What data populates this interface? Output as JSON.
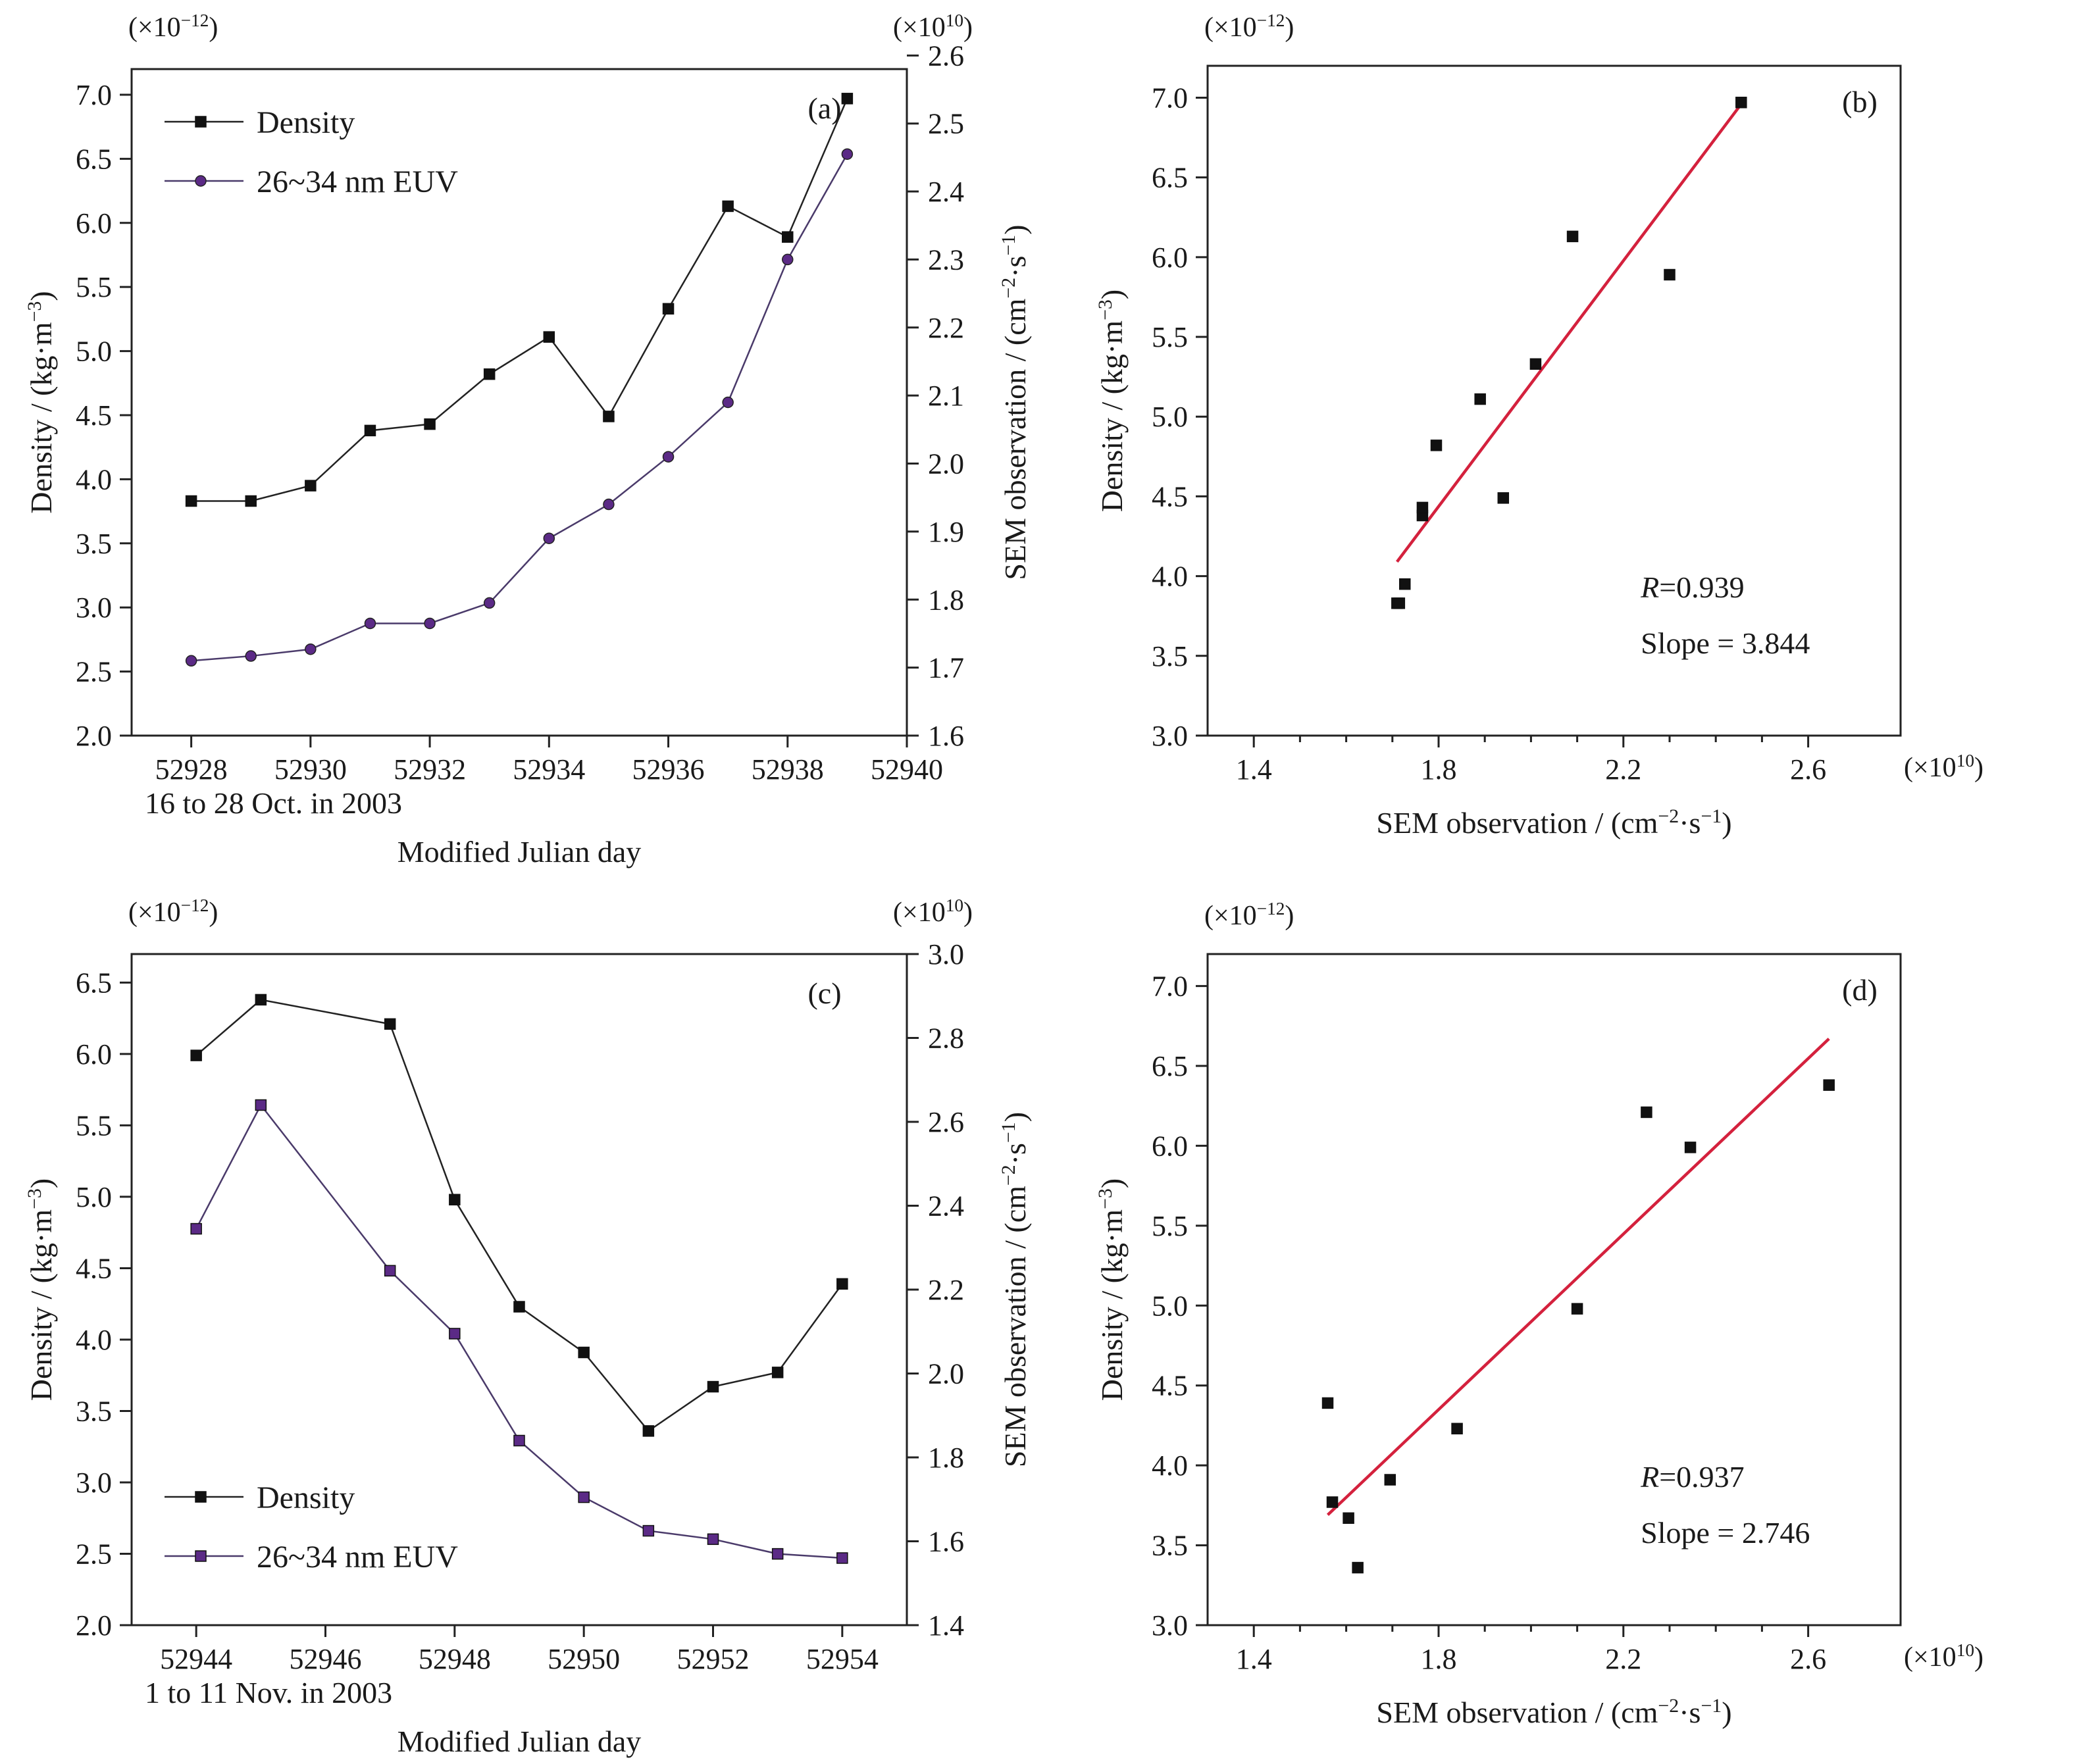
{
  "chart_data": [
    {
      "panel": "(a)",
      "type": "line",
      "dual_axis": true,
      "x": [
        52928,
        52929,
        52930,
        52931,
        52932,
        52933,
        52934,
        52935,
        52936,
        52937,
        52938,
        52939
      ],
      "xlabel": "Modified Julian day",
      "x_note": "16 to 28 Oct. in 2003",
      "xlim": [
        52927,
        52940
      ],
      "xticks": [
        52928,
        52930,
        52932,
        52934,
        52936,
        52938,
        52940
      ],
      "ylabel": "Density / (kg·m⁻³)",
      "ylabel_base": "Density / (kg·m",
      "ylabel_exp": "−3",
      "ylabel_end": ")",
      "ylim": [
        2.0,
        7.2
      ],
      "yticks": [
        "2.0",
        "2.5",
        "3.0",
        "3.5",
        "4.0",
        "4.5",
        "5.0",
        "5.5",
        "6.0",
        "6.5",
        "7.0"
      ],
      "y_multiplier": "(×10⁻¹²)",
      "y_mult_base": "(×10",
      "y_mult_exp": "−12",
      "y_mult_end": ")",
      "y2label": "SEM observation / (cm⁻²·s⁻¹)",
      "y2label_base": "SEM observation / (cm",
      "y2label_exp1": "−2",
      "y2label_mid": "·s",
      "y2label_exp2": "−1",
      "y2label_end": ")",
      "y2lim": [
        1.6,
        2.58
      ],
      "y2ticks": [
        "1.6",
        "1.7",
        "1.8",
        "1.9",
        "2.0",
        "2.1",
        "2.2",
        "2.3",
        "2.4",
        "2.5",
        "2.6"
      ],
      "y2_multiplier": "(×10¹⁰)",
      "y2_mult_base": "(×10",
      "y2_mult_exp": "10",
      "y2_mult_end": ")",
      "legend_position": "top-left",
      "series": [
        {
          "name": "Density",
          "axis": "left",
          "marker": "square",
          "color": "#111111",
          "values": [
            3.83,
            3.83,
            3.95,
            4.38,
            4.43,
            4.82,
            5.11,
            4.49,
            5.33,
            6.13,
            5.89,
            6.97
          ]
        },
        {
          "name": "26~34 nm EUV",
          "axis": "right",
          "marker": "circle",
          "color": "#5b2a86",
          "values": [
            1.71,
            1.717,
            1.727,
            1.765,
            1.765,
            1.795,
            1.89,
            1.94,
            2.01,
            2.09,
            2.3,
            2.455
          ]
        }
      ]
    },
    {
      "panel": "(b)",
      "type": "scatter",
      "xlabel": "SEM observation / (cm⁻²·s⁻¹)",
      "xlabel_base": "SEM observation / (cm",
      "xlabel_exp1": "−2",
      "xlabel_mid": "·s",
      "xlabel_exp2": "−1",
      "xlabel_end": ")",
      "xlim": [
        1.3,
        2.8
      ],
      "xticks": [
        "1.4",
        "1.8",
        "2.2",
        "2.6"
      ],
      "x_multiplier": "(×10¹⁰)",
      "x_mult_base": "(×10",
      "x_mult_exp": "10",
      "x_mult_end": ")",
      "ylabel": "Density / (kg·m⁻³)",
      "ylabel_base": "Density / (kg·m",
      "ylabel_exp": "−3",
      "ylabel_end": ")",
      "ylim": [
        3.0,
        7.2
      ],
      "yticks": [
        "3.0",
        "3.5",
        "4.0",
        "4.5",
        "5.0",
        "5.5",
        "6.0",
        "6.5",
        "7.0"
      ],
      "y_multiplier": "(×10⁻¹²)",
      "y_mult_base": "(×10",
      "y_mult_exp": "−12",
      "y_mult_end": ")",
      "points": {
        "x": [
          1.71,
          1.715,
          1.727,
          1.765,
          1.765,
          1.795,
          1.89,
          1.94,
          2.01,
          2.09,
          2.3,
          2.455
        ],
        "y": [
          3.83,
          3.83,
          3.95,
          4.38,
          4.43,
          4.82,
          5.11,
          4.49,
          5.33,
          6.13,
          5.89,
          6.97
        ]
      },
      "fit_line": {
        "x": [
          1.71,
          2.455
        ],
        "y": [
          4.09,
          6.96
        ],
        "color": "#d4213d"
      },
      "R_label": "R",
      "R_value": "=0.939",
      "slope_text": "Slope = 3.844"
    },
    {
      "panel": "(c)",
      "type": "line",
      "dual_axis": true,
      "x": [
        52944,
        52945,
        52947,
        52948,
        52949,
        52950,
        52951,
        52952,
        52953,
        52954
      ],
      "xlabel": "Modified Julian day",
      "x_note": "1 to 11 Nov. in 2003",
      "xlim": [
        52943,
        52955
      ],
      "xticks": [
        52944,
        52946,
        52948,
        52950,
        52952,
        52954
      ],
      "ylabel": "Density / (kg·m⁻³)",
      "ylabel_base": "Density / (kg·m",
      "ylabel_exp": "−3",
      "ylabel_end": ")",
      "ylim": [
        2.0,
        6.7
      ],
      "yticks": [
        "2.0",
        "2.5",
        "3.0",
        "3.5",
        "4.0",
        "4.5",
        "5.0",
        "5.5",
        "6.0",
        "6.5"
      ],
      "y_multiplier": "(×10⁻¹²)",
      "y_mult_base": "(×10",
      "y_mult_exp": "−12",
      "y_mult_end": ")",
      "y2label": "SEM observation / (cm⁻²·s⁻¹)",
      "y2label_base": "SEM observation / (cm",
      "y2label_exp1": "−2",
      "y2label_mid": "·s",
      "y2label_exp2": "−1",
      "y2label_end": ")",
      "y2lim": [
        1.4,
        3.0
      ],
      "y2ticks": [
        "1.4",
        "1.6",
        "1.8",
        "2.0",
        "2.2",
        "2.4",
        "2.6",
        "2.8",
        "3.0"
      ],
      "y2_multiplier": "(×10¹⁰)",
      "y2_mult_base": "(×10",
      "y2_mult_exp": "10",
      "y2_mult_end": ")",
      "legend_position": "bottom-left",
      "series": [
        {
          "name": "Density",
          "axis": "left",
          "marker": "square",
          "color": "#111111",
          "values": [
            5.99,
            6.38,
            6.21,
            4.98,
            4.23,
            3.91,
            3.36,
            3.67,
            3.77,
            4.39
          ]
        },
        {
          "name": "26~34 nm EUV",
          "axis": "right",
          "marker": "square",
          "color": "#5b2a86",
          "values": [
            2.345,
            2.64,
            2.245,
            2.095,
            1.84,
            1.705,
            1.625,
            1.605,
            1.57,
            1.56
          ]
        }
      ]
    },
    {
      "panel": "(d)",
      "type": "scatter",
      "xlabel": "SEM observation / (cm⁻²·s⁻¹)",
      "xlabel_base": "SEM observation / (cm",
      "xlabel_exp1": "−2",
      "xlabel_mid": "·s",
      "xlabel_exp2": "−1",
      "xlabel_end": ")",
      "xlim": [
        1.3,
        2.8
      ],
      "xticks": [
        "1.4",
        "1.8",
        "2.2",
        "2.6"
      ],
      "x_multiplier": "(×10¹⁰)",
      "x_mult_base": "(×10",
      "x_mult_exp": "10",
      "x_mult_end": ")",
      "ylabel": "Density / (kg·m⁻³)",
      "ylabel_base": "Density / (kg·m",
      "ylabel_exp": "−3",
      "ylabel_end": ")",
      "ylim": [
        3.0,
        7.2
      ],
      "yticks": [
        "3.0",
        "3.5",
        "4.0",
        "4.5",
        "5.0",
        "5.5",
        "6.0",
        "6.5",
        "7.0"
      ],
      "y_multiplier": "(×10⁻¹²)",
      "y_mult_base": "(×10",
      "y_mult_exp": "−12",
      "y_mult_end": ")",
      "points": {
        "x": [
          1.56,
          1.57,
          1.605,
          1.625,
          1.695,
          1.84,
          2.1,
          2.25,
          2.345,
          2.645
        ],
        "y": [
          4.39,
          3.77,
          3.67,
          3.36,
          3.91,
          4.23,
          4.98,
          6.21,
          5.99,
          6.38
        ]
      },
      "fit_line": {
        "x": [
          1.56,
          2.645
        ],
        "y": [
          3.69,
          6.67
        ],
        "color": "#d4213d"
      },
      "R_label": "R",
      "R_value": "=0.937",
      "slope_text": "Slope = 2.746"
    }
  ]
}
